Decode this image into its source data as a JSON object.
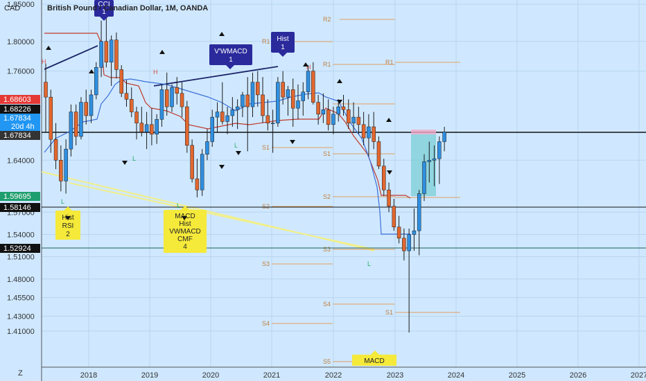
{
  "header": {
    "currency": "CAD",
    "title": "British Pound / Canadian Dollar, 1M, OANDA"
  },
  "axis": {
    "y_ticks": [
      "1.85000",
      "1.80000",
      "1.76000",
      "1.64000",
      "1.57000",
      "1.54000",
      "1.51000",
      "1.48000",
      "1.45500",
      "1.43000",
      "1.41000"
    ],
    "x_ticks": [
      "2018",
      "2019",
      "2020",
      "2021",
      "2022",
      "2023",
      "2024",
      "2025",
      "2026",
      "2027"
    ],
    "z_label": "Z"
  },
  "price_badges": [
    {
      "text": "1.68603",
      "color": "#e53935"
    },
    {
      "text": "1.68226",
      "color": "#111111"
    },
    {
      "text": "1.67834",
      "color": "#2196f3"
    },
    {
      "text": "20d 4h",
      "color": "#2196f3"
    },
    {
      "text": "1.67834",
      "color": "#333333"
    },
    {
      "text": "1.59695",
      "color": "#1e9e6e"
    },
    {
      "text": "1.58146",
      "color": "#111111"
    },
    {
      "text": "1.52924",
      "color": "#111111"
    }
  ],
  "annotations": {
    "cci": [
      "CCI",
      "1"
    ],
    "vwmacd": [
      "V'WMACD",
      "1"
    ],
    "hist": [
      "Hist",
      "1"
    ],
    "hist_rsi": [
      "Hist",
      "RSI",
      "2"
    ],
    "macd_box": [
      "MACD",
      "Hist",
      "VWMACD",
      "CMF",
      "4"
    ],
    "macd_bottom": [
      "MACD"
    ]
  },
  "pivot_labels": {
    "r2": "R2",
    "r1": "R1",
    "s1": "S1",
    "s2": "S2",
    "s3": "S3",
    "s4": "S4",
    "s5": "S5"
  },
  "markers": {
    "h": "H",
    "l": "L"
  },
  "chart_data": {
    "type": "candlestick",
    "title": "British Pound / Canadian Dollar, 1M, OANDA",
    "ylabel": "CAD",
    "xlabel": "",
    "y_ticks": [
      1.85,
      1.8,
      1.76,
      1.64,
      1.57,
      1.54,
      1.51,
      1.48,
      1.455,
      1.43,
      1.41
    ],
    "x_ticks": [
      "2018",
      "2019",
      "2020",
      "2021",
      "2022",
      "2023",
      "2024",
      "2025",
      "2026",
      "2027"
    ],
    "horizontal_levels": [
      1.68603,
      1.68226,
      1.67834,
      1.59695,
      1.58146,
      1.52924
    ],
    "candles": [
      {
        "o": 1.745,
        "h": 1.77,
        "l": 1.678,
        "c": 1.725
      },
      {
        "o": 1.725,
        "h": 1.735,
        "l": 1.65,
        "c": 1.668
      },
      {
        "o": 1.668,
        "h": 1.69,
        "l": 1.628,
        "c": 1.64
      },
      {
        "o": 1.64,
        "h": 1.66,
        "l": 1.598,
        "c": 1.612
      },
      {
        "o": 1.612,
        "h": 1.668,
        "l": 1.595,
        "c": 1.655
      },
      {
        "o": 1.655,
        "h": 1.715,
        "l": 1.645,
        "c": 1.705
      },
      {
        "o": 1.705,
        "h": 1.715,
        "l": 1.66,
        "c": 1.672
      },
      {
        "o": 1.672,
        "h": 1.725,
        "l": 1.668,
        "c": 1.718
      },
      {
        "o": 1.718,
        "h": 1.735,
        "l": 1.688,
        "c": 1.7
      },
      {
        "o": 1.7,
        "h": 1.735,
        "l": 1.69,
        "c": 1.728
      },
      {
        "o": 1.728,
        "h": 1.772,
        "l": 1.722,
        "c": 1.765
      },
      {
        "o": 1.765,
        "h": 1.828,
        "l": 1.752,
        "c": 1.8
      },
      {
        "o": 1.8,
        "h": 1.842,
        "l": 1.765,
        "c": 1.772
      },
      {
        "o": 1.772,
        "h": 1.808,
        "l": 1.74,
        "c": 1.802
      },
      {
        "o": 1.802,
        "h": 1.812,
        "l": 1.75,
        "c": 1.762
      },
      {
        "o": 1.762,
        "h": 1.768,
        "l": 1.725,
        "c": 1.73
      },
      {
        "o": 1.73,
        "h": 1.748,
        "l": 1.712,
        "c": 1.722
      },
      {
        "o": 1.722,
        "h": 1.738,
        "l": 1.698,
        "c": 1.705
      },
      {
        "o": 1.705,
        "h": 1.712,
        "l": 1.668,
        "c": 1.69
      },
      {
        "o": 1.69,
        "h": 1.712,
        "l": 1.672,
        "c": 1.678
      },
      {
        "o": 1.678,
        "h": 1.705,
        "l": 1.655,
        "c": 1.688
      },
      {
        "o": 1.688,
        "h": 1.71,
        "l": 1.66,
        "c": 1.675
      },
      {
        "o": 1.675,
        "h": 1.702,
        "l": 1.662,
        "c": 1.695
      },
      {
        "o": 1.695,
        "h": 1.742,
        "l": 1.685,
        "c": 1.735
      },
      {
        "o": 1.735,
        "h": 1.758,
        "l": 1.7,
        "c": 1.712
      },
      {
        "o": 1.712,
        "h": 1.742,
        "l": 1.705,
        "c": 1.738
      },
      {
        "o": 1.738,
        "h": 1.752,
        "l": 1.715,
        "c": 1.73
      },
      {
        "o": 1.73,
        "h": 1.745,
        "l": 1.698,
        "c": 1.712
      },
      {
        "o": 1.712,
        "h": 1.72,
        "l": 1.65,
        "c": 1.66
      },
      {
        "o": 1.66,
        "h": 1.668,
        "l": 1.61,
        "c": 1.615
      },
      {
        "o": 1.615,
        "h": 1.642,
        "l": 1.59,
        "c": 1.6
      },
      {
        "o": 1.6,
        "h": 1.655,
        "l": 1.592,
        "c": 1.648
      },
      {
        "o": 1.648,
        "h": 1.682,
        "l": 1.64,
        "c": 1.665
      },
      {
        "o": 1.665,
        "h": 1.708,
        "l": 1.658,
        "c": 1.698
      },
      {
        "o": 1.698,
        "h": 1.718,
        "l": 1.678,
        "c": 1.705
      },
      {
        "o": 1.705,
        "h": 1.745,
        "l": 1.688,
        "c": 1.692
      },
      {
        "o": 1.692,
        "h": 1.712,
        "l": 1.675,
        "c": 1.7
      },
      {
        "o": 1.7,
        "h": 1.725,
        "l": 1.685,
        "c": 1.708
      },
      {
        "o": 1.708,
        "h": 1.722,
        "l": 1.682,
        "c": 1.712
      },
      {
        "o": 1.712,
        "h": 1.732,
        "l": 1.698,
        "c": 1.728
      },
      {
        "o": 1.728,
        "h": 1.752,
        "l": 1.652,
        "c": 1.712
      },
      {
        "o": 1.712,
        "h": 1.758,
        "l": 1.698,
        "c": 1.745
      },
      {
        "o": 1.745,
        "h": 1.76,
        "l": 1.712,
        "c": 1.728
      },
      {
        "o": 1.728,
        "h": 1.752,
        "l": 1.69,
        "c": 1.7
      },
      {
        "o": 1.7,
        "h": 1.722,
        "l": 1.68,
        "c": 1.69
      },
      {
        "o": 1.69,
        "h": 1.708,
        "l": 1.65,
        "c": 1.69
      },
      {
        "o": 1.69,
        "h": 1.752,
        "l": 1.685,
        "c": 1.745
      },
      {
        "o": 1.745,
        "h": 1.76,
        "l": 1.715,
        "c": 1.725
      },
      {
        "o": 1.725,
        "h": 1.74,
        "l": 1.7,
        "c": 1.735
      },
      {
        "o": 1.735,
        "h": 1.75,
        "l": 1.685,
        "c": 1.71
      },
      {
        "o": 1.71,
        "h": 1.742,
        "l": 1.695,
        "c": 1.72
      },
      {
        "o": 1.72,
        "h": 1.745,
        "l": 1.7,
        "c": 1.732
      },
      {
        "o": 1.732,
        "h": 1.768,
        "l": 1.722,
        "c": 1.76
      },
      {
        "o": 1.76,
        "h": 1.772,
        "l": 1.715,
        "c": 1.718
      },
      {
        "o": 1.718,
        "h": 1.728,
        "l": 1.688,
        "c": 1.702
      },
      {
        "o": 1.702,
        "h": 1.73,
        "l": 1.69,
        "c": 1.708
      },
      {
        "o": 1.708,
        "h": 1.722,
        "l": 1.68,
        "c": 1.688
      },
      {
        "o": 1.688,
        "h": 1.712,
        "l": 1.675,
        "c": 1.702
      },
      {
        "o": 1.702,
        "h": 1.722,
        "l": 1.692,
        "c": 1.712
      },
      {
        "o": 1.712,
        "h": 1.728,
        "l": 1.7,
        "c": 1.708
      },
      {
        "o": 1.708,
        "h": 1.722,
        "l": 1.682,
        "c": 1.69
      },
      {
        "o": 1.69,
        "h": 1.718,
        "l": 1.678,
        "c": 1.698
      },
      {
        "o": 1.698,
        "h": 1.712,
        "l": 1.675,
        "c": 1.688
      },
      {
        "o": 1.688,
        "h": 1.705,
        "l": 1.66,
        "c": 1.67
      },
      {
        "o": 1.67,
        "h": 1.702,
        "l": 1.645,
        "c": 1.685
      },
      {
        "o": 1.685,
        "h": 1.705,
        "l": 1.655,
        "c": 1.665
      },
      {
        "o": 1.665,
        "h": 1.672,
        "l": 1.628,
        "c": 1.632
      },
      {
        "o": 1.632,
        "h": 1.642,
        "l": 1.592,
        "c": 1.6
      },
      {
        "o": 1.6,
        "h": 1.61,
        "l": 1.57,
        "c": 1.578
      },
      {
        "o": 1.578,
        "h": 1.588,
        "l": 1.545,
        "c": 1.55
      },
      {
        "o": 1.55,
        "h": 1.565,
        "l": 1.528,
        "c": 1.535
      },
      {
        "o": 1.535,
        "h": 1.548,
        "l": 1.505,
        "c": 1.518
      },
      {
        "o": 1.518,
        "h": 1.548,
        "l": 1.408,
        "c": 1.54
      },
      {
        "o": 1.54,
        "h": 1.575,
        "l": 1.518,
        "c": 1.545
      },
      {
        "o": 1.545,
        "h": 1.6,
        "l": 1.512,
        "c": 1.595
      },
      {
        "o": 1.595,
        "h": 1.648,
        "l": 1.585,
        "c": 1.638
      },
      {
        "o": 1.638,
        "h": 1.665,
        "l": 1.61,
        "c": 1.64
      },
      {
        "o": 1.64,
        "h": 1.66,
        "l": 1.605,
        "c": 1.642
      },
      {
        "o": 1.642,
        "h": 1.672,
        "l": 1.608,
        "c": 1.665
      },
      {
        "o": 1.665,
        "h": 1.685,
        "l": 1.652,
        "c": 1.678
      }
    ]
  }
}
